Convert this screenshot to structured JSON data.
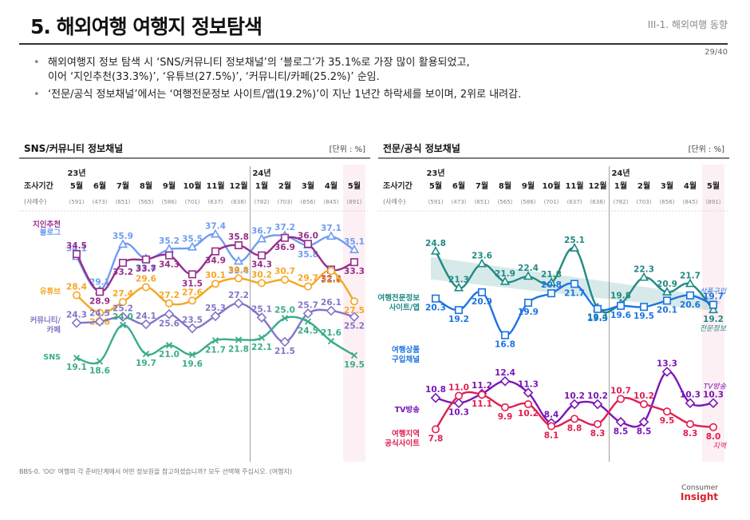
{
  "header": {
    "title": "5. 해외여행 여행지 정보탐색",
    "section": "III-1. 해외여행 동향",
    "page": "29/40"
  },
  "bullets": [
    {
      "lines": [
        "해외여행지 정보 탐색 시 ‘SNS/커뮤니티 정보채널’의 ‘블로그’가 35.1%로 가장 많이 활용되었고,",
        "이어 ‘지인추천(33.3%)’, ‘유튜브(27.5%)’, ‘커뮤니티/카페(25.2%)’ 순임."
      ]
    },
    {
      "lines": [
        "‘전문/공식 정보채널’에서는 ‘여행전문정보 사이트/앱(19.2%)’이 지난 1년간 하락세를 보이며, 2위로 내려감."
      ]
    }
  ],
  "footnote": "BBS-0. 'OO' 여행의 각 준비단계에서 어떤 정보원을 참고하셨습니까? 모두 선택해 주십시오. (여행지)",
  "logo": {
    "line1": "Consumer",
    "line2": "Insight"
  },
  "chart_data": [
    {
      "type": "line",
      "title": "SNS/커뮤니티 정보채널",
      "unit": "[단위 : %]",
      "row_label_period": "조사기간",
      "row_label_sample": "(사례수)",
      "year_labels": [
        "23년",
        "24년"
      ],
      "categories": [
        "5월",
        "6월",
        "7월",
        "8월",
        "9월",
        "10월",
        "11월",
        "12월",
        "1월",
        "2월",
        "3월",
        "4월",
        "5월"
      ],
      "sample_sizes": [
        "(591)",
        "(473)",
        "(651)",
        "(565)",
        "(586)",
        "(701)",
        "(637)",
        "(638)",
        "(782)",
        "(703)",
        "(656)",
        "(845)",
        "(891)"
      ],
      "ylim": [
        17,
        39
      ],
      "series": [
        {
          "name": "블로그",
          "color": "#6e9cf2",
          "marker": "triangle",
          "values": [
            34.1,
            29.1,
            35.9,
            33.8,
            35.2,
            35.5,
            37.4,
            33.4,
            36.7,
            37.2,
            35.8,
            37.1,
            35.1
          ]
        },
        {
          "name": "지인추천",
          "color": "#962d8c",
          "marker": "square",
          "values": [
            34.5,
            28.9,
            33.2,
            33.7,
            34.3,
            31.5,
            34.9,
            35.8,
            34.3,
            36.9,
            36.0,
            32.2,
            33.3
          ]
        },
        {
          "name": "유튜브",
          "color": "#f5a623",
          "marker": "circle",
          "values": [
            28.4,
            25.8,
            27.4,
            29.6,
            27.2,
            27.6,
            30.1,
            30.9,
            30.2,
            30.7,
            29.7,
            32.0,
            27.5
          ]
        },
        {
          "name": "커뮤니티/\n카페",
          "color": "#8474c8",
          "marker": "diamond",
          "values": [
            24.3,
            24.5,
            25.2,
            24.1,
            25.6,
            23.5,
            25.3,
            27.2,
            25.1,
            21.5,
            25.7,
            26.1,
            25.2
          ]
        },
        {
          "name": "SNS",
          "color": "#3aac8a",
          "marker": "x",
          "values": [
            19.1,
            18.6,
            24.0,
            19.7,
            21.0,
            19.6,
            21.7,
            21.8,
            22.1,
            25.0,
            24.5,
            21.6,
            19.5
          ]
        }
      ]
    },
    {
      "type": "line",
      "title": "전문/공식 정보채널",
      "unit": "[단위 : %]",
      "row_label_period": "조사기간",
      "row_label_sample": "(사례수)",
      "year_labels": [
        "23년",
        "24년"
      ],
      "categories": [
        "5월",
        "6월",
        "7월",
        "8월",
        "9월",
        "10월",
        "11월",
        "12월",
        "1월",
        "2월",
        "3월",
        "4월",
        "5월"
      ],
      "sample_sizes": [
        "(591)",
        "(473)",
        "(651)",
        "(565)",
        "(586)",
        "(701)",
        "(637)",
        "(638)",
        "(782)",
        "(703)",
        "(656)",
        "(845)",
        "(891)"
      ],
      "ylim": [
        6,
        27
      ],
      "series": [
        {
          "name": "여행전문정보\n사이트/앱",
          "end_label": "전문정보",
          "color": "#1f8a85",
          "marker": "triangle",
          "values": [
            24.8,
            21.3,
            23.6,
            21.9,
            22.4,
            21.8,
            25.1,
            19.4,
            19.8,
            22.3,
            20.9,
            21.7,
            19.2
          ]
        },
        {
          "name": "여행상품\n구입채널",
          "end_label": "상품구입",
          "color": "#1c73e0",
          "marker": "square",
          "values": [
            20.3,
            19.2,
            20.9,
            16.8,
            19.9,
            20.8,
            21.7,
            19.3,
            19.6,
            19.5,
            20.1,
            20.6,
            19.7
          ]
        },
        {
          "name": "TV방송",
          "end_label": "TV방송",
          "color": "#7a16b5",
          "marker": "diamond",
          "values": [
            10.8,
            10.3,
            11.2,
            12.4,
            11.3,
            8.4,
            10.2,
            10.2,
            8.5,
            8.5,
            13.3,
            10.3,
            10.3
          ]
        },
        {
          "name": "여행지역\n공식사이트",
          "end_label": "지역",
          "color": "#e01e4f",
          "marker": "circle",
          "values": [
            7.8,
            11.0,
            11.1,
            9.9,
            10.2,
            8.1,
            8.8,
            8.3,
            10.7,
            10.2,
            9.5,
            8.3,
            8.0
          ]
        }
      ]
    }
  ]
}
